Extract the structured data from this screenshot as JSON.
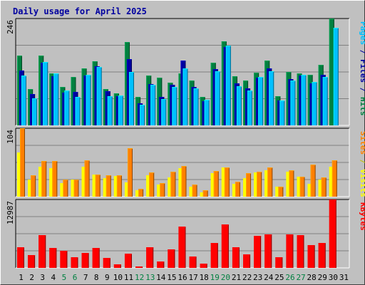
{
  "chart_data": {
    "type": "bar",
    "title": "Daily usage for April 2025",
    "categories": [
      "1",
      "2",
      "3",
      "4",
      "5",
      "6",
      "7",
      "8",
      "9",
      "10",
      "11",
      "12",
      "13",
      "14",
      "15",
      "16",
      "17",
      "18",
      "19",
      "20",
      "21",
      "22",
      "23",
      "24",
      "25",
      "26",
      "27",
      "28",
      "29",
      "30",
      "31"
    ],
    "weekend_days": [
      5,
      6,
      12,
      13,
      19,
      20,
      26,
      27
    ],
    "panels": [
      {
        "id": "top",
        "max_label": "246",
        "ymax": 246,
        "label_parts": [
          {
            "text": "Pages",
            "color": "#00c0ff"
          },
          {
            "text": " / ",
            "color": "#0000a0"
          },
          {
            "text": "Files",
            "color": "#0000a0"
          },
          {
            "text": " / ",
            "color": "#0000a0"
          },
          {
            "text": "Hits",
            "color": "#008040"
          }
        ],
        "series": [
          {
            "name": "Hits",
            "color": "#008040",
            "values": [
              161,
              84,
              161,
              120,
              89,
              112,
              131,
              148,
              84,
              73,
              192,
              66,
              114,
              110,
              99,
              120,
              104,
              65,
              144,
              193,
              113,
              103,
              121,
              149,
              68,
              123,
              119,
              117,
              140,
              246,
              null
            ]
          },
          {
            "name": "Files",
            "color": "#0000a0",
            "values": [
              127,
              72,
              145,
              113,
              75,
              77,
              114,
              136,
              78,
              67,
              152,
              51,
              95,
              66,
              93,
              150,
              88,
              56,
              129,
              180,
              97,
              85,
              110,
              132,
              58,
              107,
              115,
              96,
              117,
              null,
              null
            ]
          },
          {
            "name": "Pages",
            "color": "#00c0ff",
            "values": [
              114,
              63,
              146,
              119,
              81,
              65,
              116,
              134,
              67,
              69,
              123,
              48,
              94,
              61,
              88,
              131,
              86,
              59,
              125,
              184,
              91,
              80,
              112,
              125,
              58,
              104,
              116,
              100,
              112,
              224,
              null
            ]
          }
        ]
      },
      {
        "id": "middle",
        "max_label": "104",
        "ymax": 104,
        "label_parts": [
          {
            "text": "Sites",
            "color": "#ff8000"
          },
          {
            "text": " / ",
            "color": "#c0c000"
          },
          {
            "text": "Visits",
            "color": "#ffff00"
          }
        ],
        "series": [
          {
            "name": "Visits",
            "color": "#ffff00",
            "values": [
              67,
              26,
              45,
              43,
              21,
              26,
              46,
              34,
              28,
              31,
              22,
              10,
              33,
              18,
              29,
              43,
              15,
              7,
              36,
              44,
              20,
              28,
              37,
              40,
              15,
              38,
              30,
              19,
              26,
              46,
              null
            ]
          },
          {
            "name": "Sites",
            "color": "#ff8000",
            "values": [
              104,
              33,
              54,
              54,
              26,
              26,
              55,
              34,
              32,
              33,
              74,
              12,
              37,
              21,
              38,
              47,
              18,
              10,
              39,
              44,
              23,
              36,
              38,
              44,
              15,
              40,
              30,
              49,
              29,
              55,
              null
            ]
          }
        ]
      },
      {
        "id": "bottom",
        "max_label": "12987",
        "ymax": 12987,
        "label_parts": [
          {
            "text": "KBytes",
            "color": "#ff0000"
          }
        ],
        "series": [
          {
            "name": "KBytes",
            "color": "#ff0000",
            "values": [
              3900,
              2500,
              6200,
              3800,
              3200,
              2000,
              2900,
              3800,
              1900,
              700,
              2700,
              300,
              3900,
              1200,
              3500,
              7800,
              2100,
              800,
              4700,
              8200,
              3900,
              2600,
              6100,
              6300,
              2000,
              6300,
              6200,
              4300,
              4700,
              12987,
              null
            ]
          }
        ]
      }
    ]
  }
}
